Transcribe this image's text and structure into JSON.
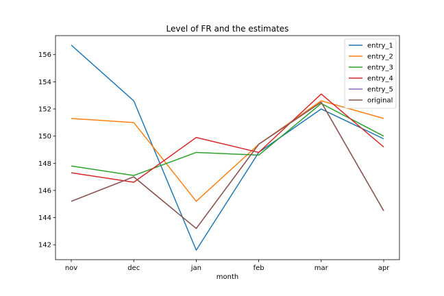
{
  "chart_data": {
    "type": "line",
    "title": "Level of FR and the estimates",
    "xlabel": "month",
    "ylabel": "",
    "categories": [
      "nov",
      "dec",
      "jan",
      "feb",
      "mar",
      "apr"
    ],
    "ylim": [
      140.9,
      157.4
    ],
    "yticks": [
      142,
      144,
      146,
      148,
      150,
      152,
      154,
      156
    ],
    "grid": false,
    "legend_position": "top-right",
    "series": [
      {
        "name": "entry_1",
        "color": "#1f77b4",
        "values": [
          156.7,
          152.6,
          141.6,
          148.8,
          152.0,
          149.8
        ]
      },
      {
        "name": "entry_2",
        "color": "#ff7f0e",
        "values": [
          151.3,
          151.0,
          145.2,
          149.4,
          152.6,
          151.3
        ]
      },
      {
        "name": "entry_3",
        "color": "#2ca02c",
        "values": [
          147.8,
          147.1,
          148.8,
          148.6,
          152.4,
          150.0
        ]
      },
      {
        "name": "entry_4",
        "color": "#d62728",
        "values": [
          147.3,
          146.6,
          149.9,
          148.8,
          153.1,
          149.2
        ]
      },
      {
        "name": "entry_5",
        "color": "#9467bd",
        "values": [
          145.2,
          147.0,
          143.2,
          149.4,
          152.5,
          144.5
        ]
      },
      {
        "name": "original",
        "color": "#8c564b",
        "values": [
          145.2,
          147.0,
          143.2,
          149.4,
          152.5,
          144.5
        ]
      }
    ]
  }
}
